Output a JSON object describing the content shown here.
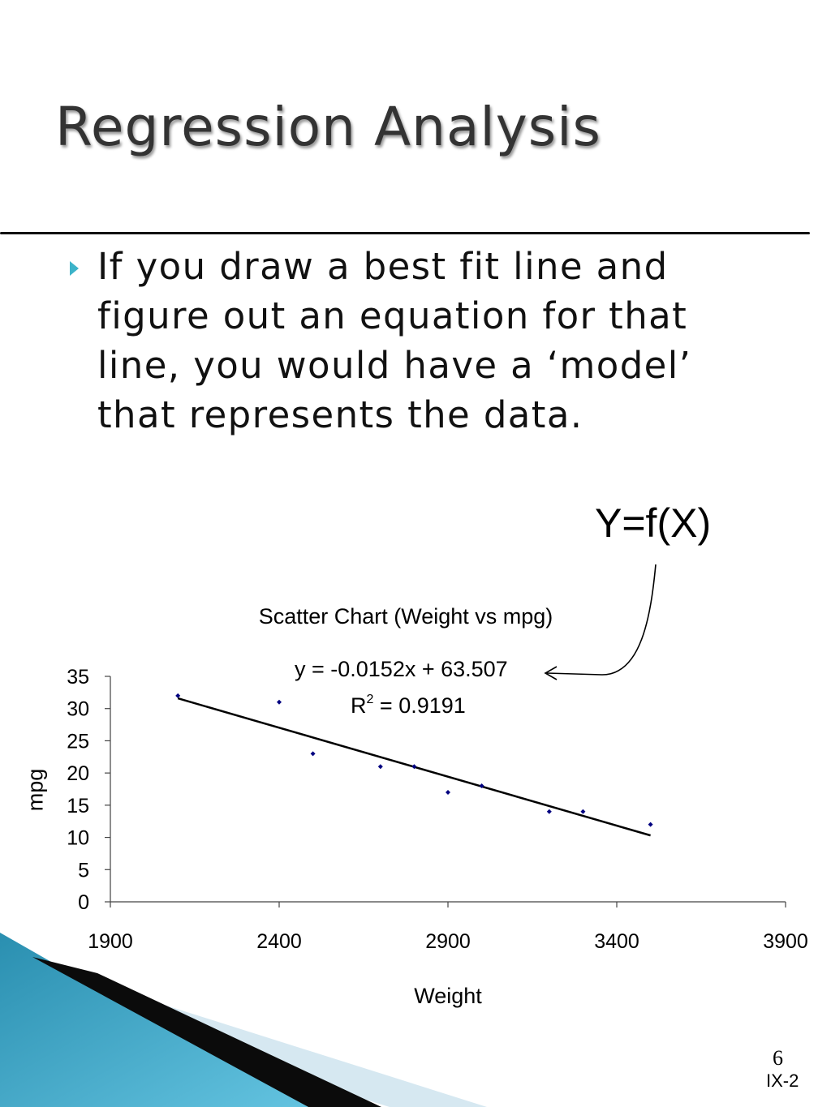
{
  "slide": {
    "title": "Regression Analysis",
    "bullet": "If you draw a best fit line and figure out an equation for that line, you would have a ‘model’ that represents the data.",
    "model_label": "Y=f(X)",
    "page_number": "6",
    "slide_code": "IX-2",
    "accent_color": "#3cb3c9"
  },
  "chart_data": {
    "type": "scatter",
    "title": "Scatter Chart (Weight vs mpg)",
    "xlabel": "Weight",
    "ylabel": "mpg",
    "xlim": [
      1900,
      3900
    ],
    "ylim": [
      0,
      35
    ],
    "x_ticks": [
      1900,
      2400,
      2900,
      3400,
      3900
    ],
    "y_ticks": [
      0,
      5,
      10,
      15,
      20,
      25,
      30,
      35
    ],
    "grid": false,
    "points": [
      {
        "x": 2100,
        "y": 32
      },
      {
        "x": 2400,
        "y": 31
      },
      {
        "x": 2500,
        "y": 23
      },
      {
        "x": 2700,
        "y": 21
      },
      {
        "x": 2800,
        "y": 21
      },
      {
        "x": 2900,
        "y": 17
      },
      {
        "x": 3000,
        "y": 18
      },
      {
        "x": 3200,
        "y": 14
      },
      {
        "x": 3300,
        "y": 14
      },
      {
        "x": 3500,
        "y": 12
      }
    ],
    "trendline": {
      "slope": -0.0152,
      "intercept": 63.507,
      "x_range": [
        2100,
        3500
      ],
      "equation_text": "y = -0.0152x + 63.507",
      "r2_prefix": "R",
      "r2_exponent": "2",
      "r2_value_text": "= 0.9191"
    },
    "point_color": "#000080",
    "line_color": "#000000"
  }
}
